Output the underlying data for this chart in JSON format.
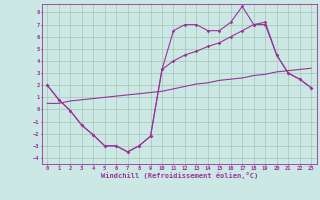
{
  "xlabel": "Windchill (Refroidissement éolien,°C)",
  "bg_color": "#cce8e4",
  "grid_color": "#aaccbb",
  "line_color": "#993399",
  "xlim": [
    -0.5,
    23.5
  ],
  "ylim": [
    -4.5,
    8.7
  ],
  "yticks": [
    -4,
    -3,
    -2,
    -1,
    0,
    1,
    2,
    3,
    4,
    5,
    6,
    7,
    8
  ],
  "xticks": [
    0,
    1,
    2,
    3,
    4,
    5,
    6,
    7,
    8,
    9,
    10,
    11,
    12,
    13,
    14,
    15,
    16,
    17,
    18,
    19,
    20,
    21,
    22,
    23
  ],
  "curve1_x": [
    0,
    1,
    2,
    3,
    4,
    5,
    6,
    7,
    8,
    9,
    10,
    11,
    12,
    13,
    14,
    15,
    16,
    17,
    18,
    19,
    20,
    21,
    22,
    23
  ],
  "curve1_y": [
    2.0,
    0.8,
    -0.1,
    -1.3,
    -2.1,
    -3.0,
    -3.0,
    -3.5,
    -3.0,
    -2.2,
    3.3,
    6.5,
    7.0,
    7.0,
    6.5,
    6.5,
    7.2,
    8.5,
    7.0,
    7.0,
    4.5,
    3.0,
    2.5,
    1.8
  ],
  "curve2_x": [
    0,
    1,
    2,
    3,
    4,
    5,
    6,
    7,
    8,
    9,
    10,
    11,
    12,
    13,
    14,
    15,
    16,
    17,
    18,
    19,
    20,
    21,
    22,
    23
  ],
  "curve2_y": [
    2.0,
    0.8,
    -0.1,
    -1.3,
    -2.1,
    -3.0,
    -3.0,
    -3.5,
    -3.0,
    -2.2,
    3.3,
    4.0,
    4.5,
    4.8,
    5.2,
    5.5,
    6.0,
    6.5,
    7.0,
    7.2,
    4.5,
    3.0,
    2.5,
    1.8
  ],
  "curve3_x": [
    0,
    1,
    2,
    3,
    4,
    5,
    6,
    7,
    8,
    9,
    10,
    11,
    12,
    13,
    14,
    15,
    16,
    17,
    18,
    19,
    20,
    21,
    22,
    23
  ],
  "curve3_y": [
    0.5,
    0.5,
    0.7,
    0.8,
    0.9,
    1.0,
    1.1,
    1.2,
    1.3,
    1.4,
    1.5,
    1.7,
    1.9,
    2.1,
    2.2,
    2.4,
    2.5,
    2.6,
    2.8,
    2.9,
    3.1,
    3.2,
    3.3,
    3.4
  ]
}
